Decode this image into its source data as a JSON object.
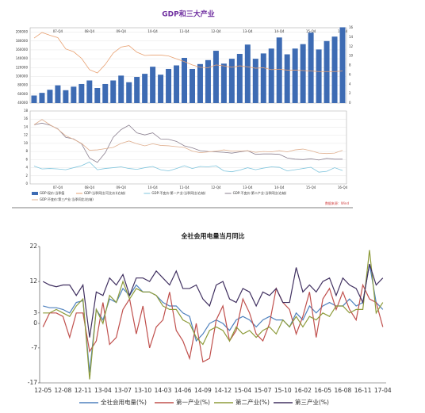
{
  "chart_data": [
    {
      "type": "bar",
      "title": "GDP和三大产业",
      "categories": [
        null,
        null,
        null,
        "07-Q4",
        null,
        null,
        null,
        "08-Q4",
        null,
        null,
        null,
        "09-Q4",
        null,
        null,
        null,
        "10-Q4",
        null,
        null,
        null,
        "11-Q4",
        null,
        null,
        null,
        "12-Q4",
        null,
        null,
        null,
        "13-Q4",
        null,
        null,
        null,
        "14-Q4",
        null,
        null,
        null,
        "15-Q4",
        null,
        null,
        null,
        "16-Q4"
      ],
      "ylim": [
        40000,
        210000
      ],
      "yticks": [
        40000,
        60000,
        80000,
        100000,
        120000,
        140000,
        160000,
        180000,
        200000
      ],
      "y2lim": [
        0,
        16
      ],
      "y2ticks": [
        0,
        2,
        4,
        6,
        8,
        10,
        12,
        14,
        16
      ],
      "grid": true,
      "series": [
        {
          "name": "GDP:现价:当季值",
          "color": "#3d6bb3",
          "type": "bar",
          "values": [
            57000,
            63000,
            70000,
            80000,
            69000,
            77000,
            83000,
            91000,
            74000,
            83000,
            91000,
            102000,
            87000,
            99000,
            106000,
            122000,
            104000,
            117000,
            125000,
            142000,
            117000,
            128000,
            137000,
            158000,
            129000,
            140000,
            151000,
            172000,
            140000,
            152000,
            163000,
            188000,
            150000,
            163000,
            173000,
            199000,
            161000,
            180000,
            190000,
            211000
          ]
        },
        {
          "name": "GDP:当季同比(可比价)(右轴)",
          "color": "#e8a070",
          "type": "line",
          "axis": "y2",
          "values": [
            13.8,
            15.0,
            14.4,
            13.9,
            11.5,
            10.9,
            9.5,
            7.1,
            6.4,
            8.2,
            10.6,
            11.9,
            12.2,
            10.8,
            10.1,
            10.2,
            10.2,
            10.0,
            9.4,
            8.8,
            8.1,
            7.6,
            7.5,
            8.1,
            7.9,
            7.6,
            7.9,
            7.7,
            7.4,
            7.5,
            7.1,
            7.2,
            7.0,
            7.0,
            6.9,
            6.8,
            6.7,
            6.7,
            6.7,
            6.8
          ]
        }
      ]
    },
    {
      "type": "line",
      "source": "数据来源：Wind",
      "categories": [
        null,
        null,
        null,
        "07-Q4",
        null,
        null,
        null,
        "08-Q4",
        null,
        null,
        null,
        "09-Q4",
        null,
        null,
        null,
        "10-Q4",
        null,
        null,
        null,
        "11-Q4",
        null,
        null,
        null,
        "12-Q4",
        null,
        null,
        null,
        "13-Q4",
        null,
        null,
        null,
        "14-Q4",
        null,
        null,
        null,
        "15-Q4",
        null,
        null,
        null,
        "16-Q4"
      ],
      "ylim": [
        0,
        18
      ],
      "yticks": [
        0,
        2,
        4,
        6,
        8,
        10,
        12,
        14,
        16,
        18
      ],
      "grid": true,
      "series": [
        {
          "name": "GDP:不变价:第一产业:当季同比(右轴)",
          "color": "#7fc5dd",
          "values": [
            4.4,
            3.7,
            3.8,
            3.7,
            3.5,
            4.0,
            4.5,
            5.4,
            3.5,
            3.8,
            4.0,
            4.2,
            3.8,
            3.6,
            4.0,
            4.3,
            3.5,
            3.2,
            3.8,
            4.5,
            3.8,
            4.3,
            4.2,
            4.5,
            3.2,
            3.0,
            3.4,
            4.0,
            3.5,
            3.9,
            4.2,
            4.1,
            3.2,
            3.5,
            3.8,
            4.1,
            2.9,
            3.1,
            4.0,
            3.3
          ]
        },
        {
          "name": "GDP:不变价:第二产业:当季同比(右轴)",
          "color": "#8a7f8f",
          "values": [
            14.6,
            15.0,
            14.5,
            13.6,
            11.5,
            11.1,
            9.9,
            6.4,
            5.3,
            7.7,
            11.5,
            13.4,
            14.5,
            12.6,
            12.1,
            12.6,
            11.1,
            11.0,
            10.5,
            9.4,
            8.9,
            8.2,
            8.0,
            7.9,
            7.8,
            7.6,
            7.9,
            8.2,
            7.3,
            7.4,
            7.4,
            7.3,
            6.4,
            6.1,
            6.0,
            6.2,
            5.9,
            6.3,
            6.1,
            6.1
          ]
        },
        {
          "name": "GDP:不变价:第三产业:当季同比(右轴)",
          "color": "#e0b090",
          "values": [
            14.6,
            15.9,
            14.6,
            13.5,
            11.9,
            11.0,
            10.0,
            8.3,
            8.4,
            8.7,
            9.0,
            10.0,
            10.6,
            9.9,
            9.4,
            9.9,
            9.5,
            9.4,
            9.2,
            9.0,
            8.1,
            7.7,
            7.9,
            8.1,
            8.4,
            8.1,
            8.1,
            8.2,
            7.8,
            8.0,
            7.9,
            8.2,
            7.9,
            8.4,
            8.6,
            8.2,
            7.6,
            7.5,
            7.6,
            8.3
          ]
        }
      ]
    },
    {
      "type": "line",
      "title": "全社会用电量当月同比",
      "categories": [
        "12-05",
        null,
        null,
        "12-08",
        null,
        null,
        "12-11",
        null,
        null,
        "13-04",
        null,
        null,
        "13-07",
        null,
        null,
        "13-10",
        null,
        null,
        "14-03",
        null,
        null,
        "14-06",
        null,
        null,
        "14-09",
        null,
        null,
        "14-12",
        null,
        null,
        "15-04",
        null,
        null,
        "15-07",
        null,
        null,
        "15-10",
        null,
        null,
        "16-02",
        null,
        null,
        "16-05",
        null,
        null,
        "16-08",
        null,
        null,
        "16-11",
        null,
        null,
        "17-04"
      ],
      "ylim": [
        -17,
        22
      ],
      "yticks": [
        -17,
        -7,
        0,
        3,
        12,
        22
      ],
      "grid": false,
      "series": [
        {
          "name": "全社会用电量(%)",
          "color": "#4f81bd",
          "values": [
            5,
            4.5,
            4.5,
            4,
            3,
            6,
            6.5,
            -14,
            4,
            1,
            7,
            6,
            10,
            8,
            11,
            9,
            9,
            8,
            6,
            5,
            5,
            3,
            2,
            -5,
            -3,
            0,
            1,
            0,
            -2,
            1,
            2,
            1,
            -1,
            1,
            2,
            1,
            1,
            -1,
            3,
            1,
            5,
            3,
            5,
            6,
            5,
            5,
            7,
            5,
            6,
            17,
            6,
            4
          ]
        },
        {
          "name": "第一产业(%)",
          "color": "#c0504d",
          "values": [
            -1,
            3,
            3,
            2,
            -4,
            3,
            3,
            -8,
            -5,
            6,
            -6,
            -4,
            4,
            7,
            -3,
            5,
            -7,
            -1,
            1,
            9,
            -2,
            -5,
            -10,
            0,
            -11,
            -10,
            1,
            5,
            -5,
            -2,
            7,
            3,
            -3,
            -5,
            0,
            10,
            6,
            4,
            -3,
            2,
            9,
            -4,
            7,
            10,
            4,
            9,
            4,
            1,
            11,
            7,
            6,
            -1
          ]
        },
        {
          "name": "第二产业(%)",
          "color": "#8d9b3a",
          "values": [
            3,
            3,
            4,
            3,
            2,
            5,
            7,
            -16,
            4,
            0,
            8,
            6,
            12,
            7,
            10,
            9,
            9,
            8,
            5,
            4,
            4,
            1,
            0,
            -4,
            -6,
            -2,
            -1,
            -2,
            -5,
            -1,
            -3,
            -2,
            -4,
            -2,
            -1,
            -3,
            1,
            -1,
            2,
            -1,
            2,
            1,
            3,
            2,
            5,
            5,
            3,
            4,
            4,
            21,
            3,
            6
          ]
        },
        {
          "name": "第三产业(%)",
          "color": "#403060",
          "values": [
            12,
            11,
            10.5,
            11,
            11,
            8,
            11,
            -4,
            9,
            8,
            13,
            11,
            14,
            8,
            13,
            13,
            12,
            15,
            13,
            11,
            15,
            10,
            10,
            11,
            7,
            5,
            11,
            12,
            7,
            6,
            10,
            9,
            5,
            9,
            8,
            10,
            6,
            6,
            16,
            9,
            11,
            9,
            12,
            13,
            8,
            13,
            11,
            10,
            6,
            17,
            11,
            13
          ]
        }
      ]
    }
  ]
}
